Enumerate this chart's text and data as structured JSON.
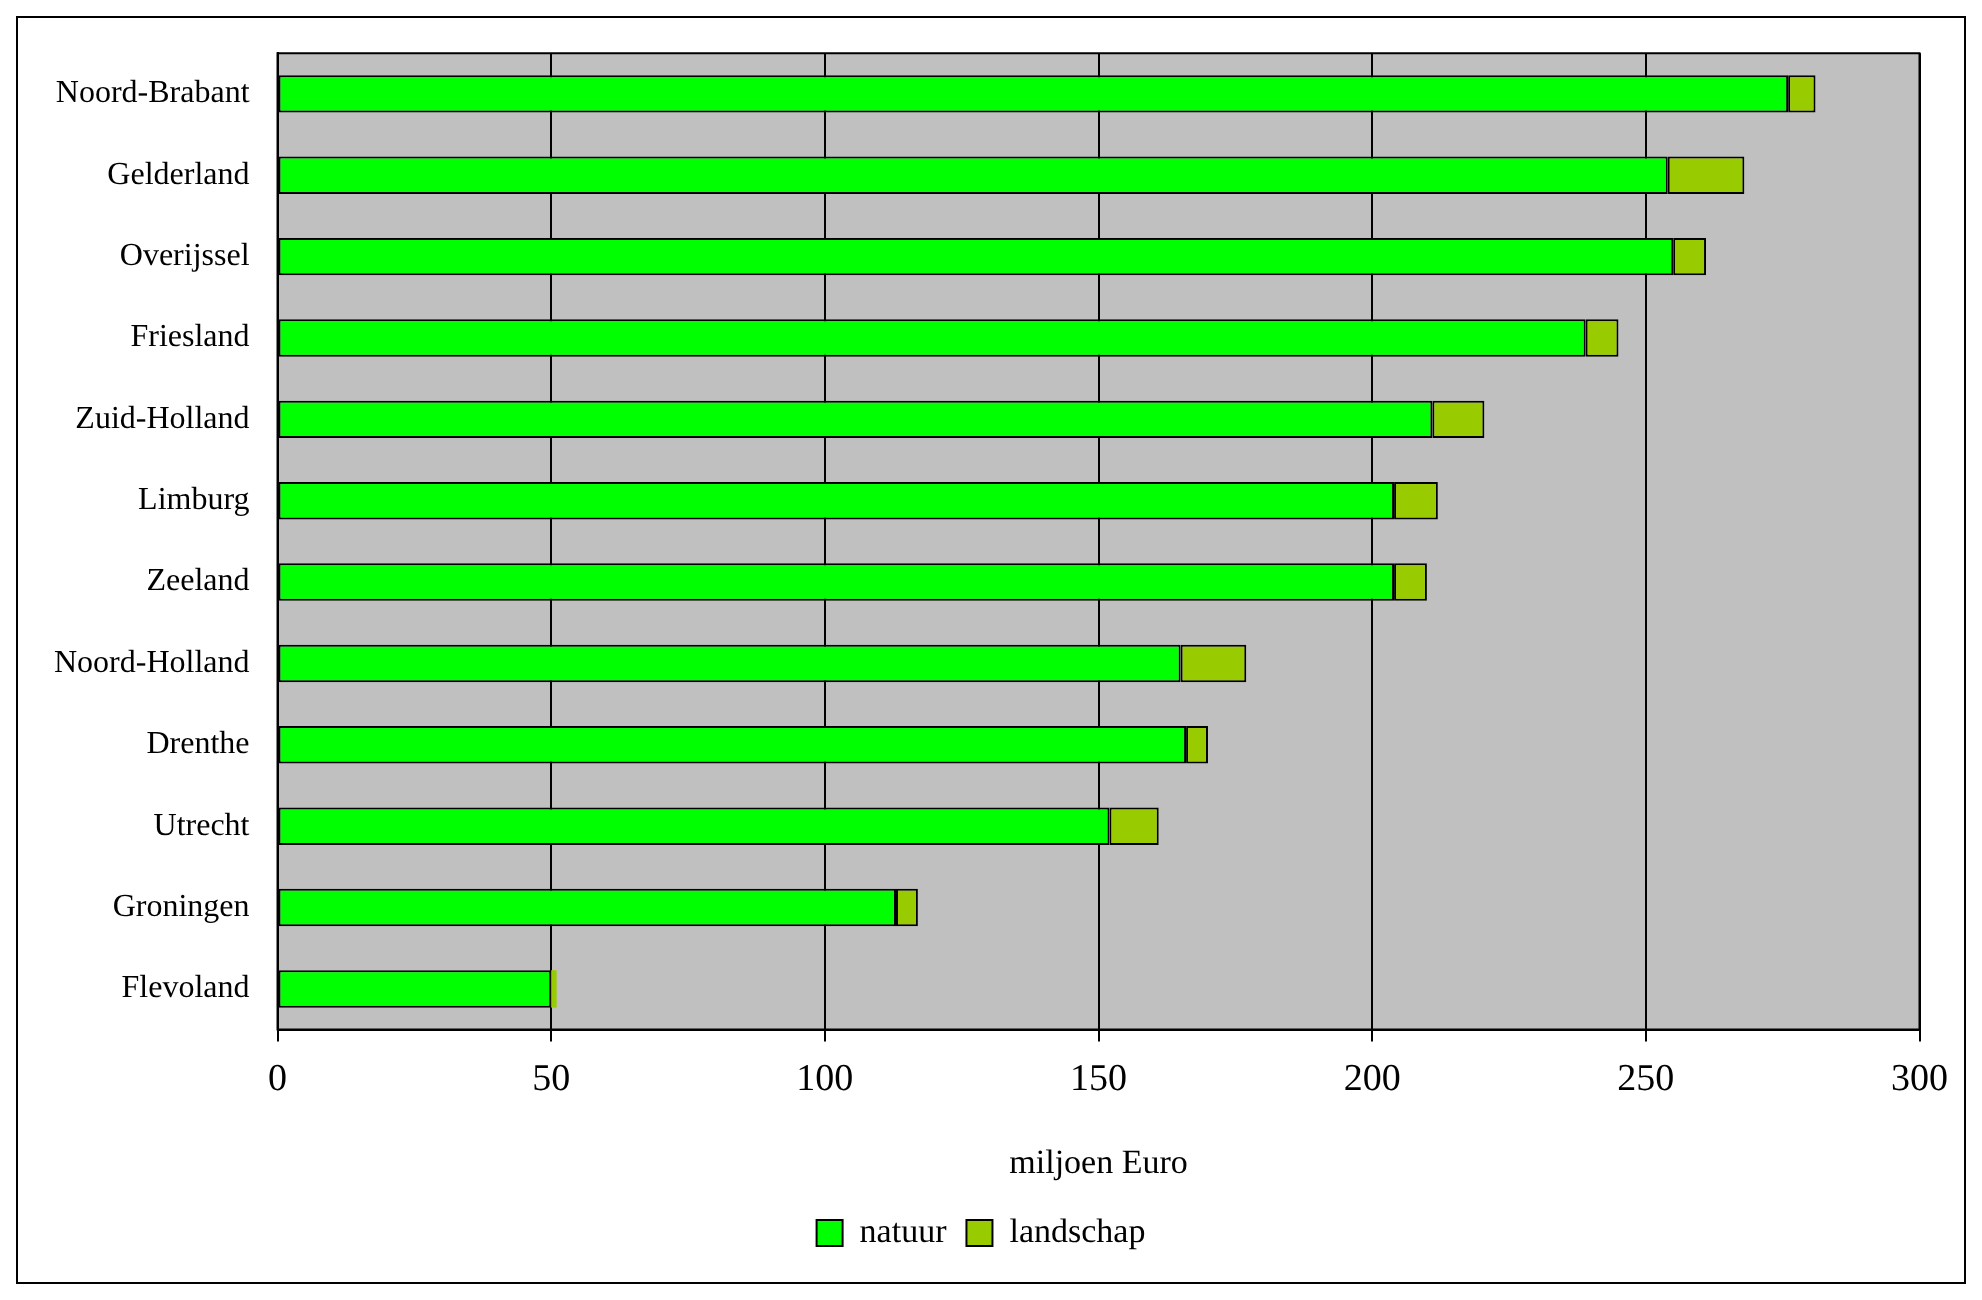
{
  "chart_data": {
    "type": "bar",
    "orientation": "horizontal",
    "stacked": true,
    "xlabel": "miljoen Euro",
    "categories": [
      "Noord-Brabant",
      "Gelderland",
      "Overijssel",
      "Friesland",
      "Zuid-Holland",
      "Limburg",
      "Zeeland",
      "Noord-Holland",
      "Drenthe",
      "Utrecht",
      "Groningen",
      "Flevoland"
    ],
    "series": [
      {
        "name": "natuur",
        "color": "#00ff00",
        "values": [
          276,
          254,
          255,
          239,
          211,
          204,
          204,
          165,
          166,
          152,
          113,
          50
        ]
      },
      {
        "name": "landschap",
        "color": "#99cc00",
        "values": [
          5,
          14,
          6,
          6,
          9.5,
          8,
          6,
          12,
          4,
          9,
          4,
          1
        ]
      }
    ],
    "xlim": [
      0,
      300
    ],
    "xticks": [
      0,
      50,
      100,
      150,
      200,
      250,
      300
    ],
    "grid": "x",
    "legend": "bottom"
  }
}
